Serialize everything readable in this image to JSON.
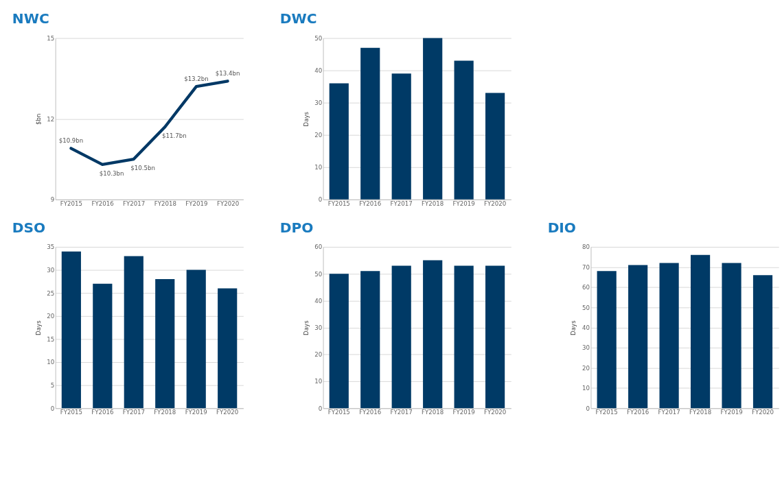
{
  "chart_data": [
    {
      "type": "line",
      "title": "NWC",
      "ylabel": "$bn",
      "categories": [
        "FY2015",
        "FY2016",
        "FY2017",
        "FY2018",
        "FY2019",
        "FY2020"
      ],
      "series": [
        {
          "color": "#003865",
          "values": [
            10.9,
            10.3,
            10.5,
            11.7,
            13.2,
            13.4
          ],
          "value_labels": [
            "$10.9bn",
            "$10.3bn",
            "$10.5bn",
            "$11.7bn",
            "$13.2bn",
            "$13.4bn"
          ]
        }
      ],
      "ylim": [
        9,
        15
      ],
      "yticks": [
        9,
        12,
        15
      ],
      "grid": "y",
      "marker": "none",
      "line_style": "solid"
    },
    {
      "type": "bar",
      "title": "DWC",
      "ylabel": "Days",
      "categories": [
        "FY2015",
        "FY2016",
        "FY2017",
        "FY2018",
        "FY2019",
        "FY2020"
      ],
      "series": [
        {
          "color": "#003a66",
          "values": [
            36,
            47,
            39,
            50,
            43,
            33
          ]
        }
      ],
      "ylim": [
        0,
        50
      ],
      "yticks": [
        0,
        10,
        20,
        30,
        40,
        50
      ],
      "grid": "y"
    },
    {
      "type": "bar",
      "title": "DSO",
      "ylabel": "Days",
      "categories": [
        "FY2015",
        "FY2016",
        "FY2017",
        "FY2018",
        "FY2019",
        "FY2020"
      ],
      "series": [
        {
          "color": "#003a66",
          "values": [
            34,
            27,
            33,
            28,
            30,
            26
          ]
        }
      ],
      "ylim": [
        0,
        35
      ],
      "yticks": [
        0,
        5,
        10,
        15,
        20,
        25,
        30,
        35
      ],
      "grid": "y"
    },
    {
      "type": "bar",
      "title": "DPO",
      "ylabel": "Days",
      "categories": [
        "FY2015",
        "FY2016",
        "FY2017",
        "FY2018",
        "FY2019",
        "FY2020"
      ],
      "series": [
        {
          "color": "#003a66",
          "values": [
            50,
            51,
            53,
            55,
            53,
            53
          ]
        }
      ],
      "ylim": [
        0,
        60
      ],
      "yticks": [
        0,
        10,
        20,
        30,
        40,
        50,
        60
      ],
      "grid": "y"
    },
    {
      "type": "bar",
      "title": "DIO",
      "ylabel": "Days",
      "categories": [
        "FY2015",
        "FY2016",
        "FY2017",
        "FY2018",
        "FY2019",
        "FY2020"
      ],
      "series": [
        {
          "color": "#003a66",
          "values": [
            68,
            71,
            72,
            76,
            72,
            66
          ]
        }
      ],
      "ylim": [
        0,
        80
      ],
      "yticks": [
        0,
        10,
        20,
        30,
        40,
        50,
        60,
        70,
        80
      ],
      "grid": "y"
    }
  ]
}
